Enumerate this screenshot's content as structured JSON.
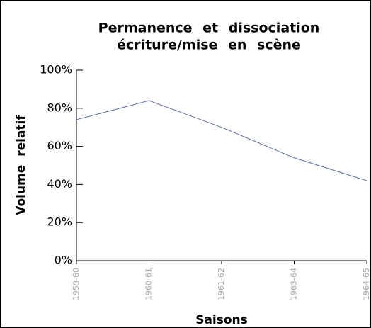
{
  "chart_data": {
    "type": "line",
    "title": [
      "Permanence et dissociation",
      "écriture/mise en scène"
    ],
    "y_label": "Volume relatif",
    "x_label": "Saisons",
    "categories": [
      "1959-60",
      "1960-61",
      "1961-62",
      "1963-64",
      "1964-65"
    ],
    "series": [
      {
        "name": null,
        "color": "#5b6fb5",
        "values": [
          74,
          84,
          70,
          54,
          42
        ]
      }
    ],
    "ylim": [
      0,
      100
    ],
    "yticks": [
      {
        "value": 0,
        "label": "0%"
      },
      {
        "value": 20,
        "label": "20%"
      },
      {
        "value": 40,
        "label": "40%"
      },
      {
        "value": 60,
        "label": "60%"
      },
      {
        "value": 80,
        "label": "80%"
      },
      {
        "value": 100,
        "label": "100%"
      }
    ]
  }
}
